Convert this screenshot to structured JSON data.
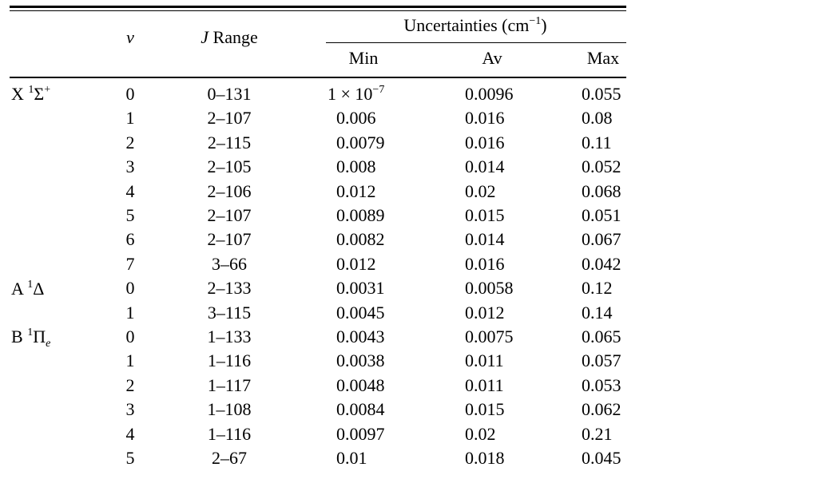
{
  "table": {
    "headers": {
      "v": "v",
      "j_italic": "J",
      "j_rest": " Range",
      "uncertainties": "Uncertainties (cm",
      "unc_exp": "−1",
      "unc_close": ")",
      "min": "Min",
      "av": "Av",
      "max": "Max"
    },
    "states": [
      {
        "base": "X ",
        "sup": "1",
        "sym": "Σ",
        "sup2": "+",
        "sub": ""
      },
      {
        "base": "A ",
        "sup": "1",
        "sym": "Δ",
        "sup2": "",
        "sub": ""
      },
      {
        "base": "B ",
        "sup": "1",
        "sym": "Π",
        "sup2": "",
        "sub": "e"
      }
    ],
    "first_min": {
      "mant": "1 × 10",
      "exp": "−7"
    },
    "rows": [
      {
        "v": "0",
        "j": "0–131",
        "min": "",
        "av": "0.0096",
        "max": "0.055"
      },
      {
        "v": "1",
        "j": "2–107",
        "min": "0.006",
        "av": "0.016",
        "max": "0.08"
      },
      {
        "v": "2",
        "j": "2–115",
        "min": "0.0079",
        "av": "0.016",
        "max": "0.11"
      },
      {
        "v": "3",
        "j": "2–105",
        "min": "0.008",
        "av": "0.014",
        "max": "0.052"
      },
      {
        "v": "4",
        "j": "2–106",
        "min": "0.012",
        "av": "0.02",
        "max": "0.068"
      },
      {
        "v": "5",
        "j": "2–107",
        "min": "0.0089",
        "av": "0.015",
        "max": "0.051"
      },
      {
        "v": "6",
        "j": "2–107",
        "min": "0.0082",
        "av": "0.014",
        "max": "0.067"
      },
      {
        "v": "7",
        "j": "3–66",
        "min": "0.012",
        "av": "0.016",
        "max": "0.042"
      },
      {
        "v": "0",
        "j": "2–133",
        "min": "0.0031",
        "av": "0.0058",
        "max": "0.12"
      },
      {
        "v": "1",
        "j": "3–115",
        "min": "0.0045",
        "av": "0.012",
        "max": "0.14"
      },
      {
        "v": "0",
        "j": "1–133",
        "min": "0.0043",
        "av": "0.0075",
        "max": "0.065"
      },
      {
        "v": "1",
        "j": "1–116",
        "min": "0.0038",
        "av": "0.011",
        "max": "0.057"
      },
      {
        "v": "2",
        "j": "1–117",
        "min": "0.0048",
        "av": "0.011",
        "max": "0.053"
      },
      {
        "v": "3",
        "j": "1–108",
        "min": "0.0084",
        "av": "0.015",
        "max": "0.062"
      },
      {
        "v": "4",
        "j": "1–116",
        "min": "0.0097",
        "av": "0.02",
        "max": "0.21"
      },
      {
        "v": "5",
        "j": "2–67",
        "min": "0.01",
        "av": "0.018",
        "max": "0.045"
      }
    ]
  }
}
